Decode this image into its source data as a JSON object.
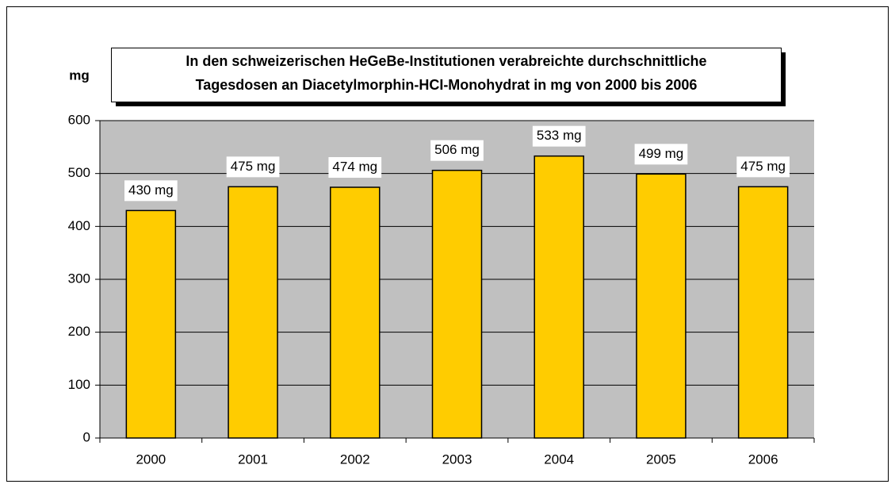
{
  "chart_data": {
    "type": "bar",
    "title": [
      "In den schweizerischen HeGeBe-Institutionen verabreichte durchschnittliche",
      "Tagesdosen an Diacetylmorphin-HCI-Monohydrat in mg von 2000 bis 2006"
    ],
    "y_label": "mg",
    "categories": [
      "2000",
      "2001",
      "2002",
      "2003",
      "2004",
      "2005",
      "2006"
    ],
    "values": [
      430,
      475,
      474,
      506,
      533,
      499,
      475
    ],
    "value_labels": [
      "430 mg",
      "475 mg",
      "474 mg",
      "506 mg",
      "533 mg",
      "499 mg",
      "475 mg"
    ],
    "color": "#ffcc00",
    "ylim": [
      0,
      600
    ],
    "yticks": [
      0,
      100,
      200,
      300,
      400,
      500,
      600
    ],
    "grid": true
  }
}
